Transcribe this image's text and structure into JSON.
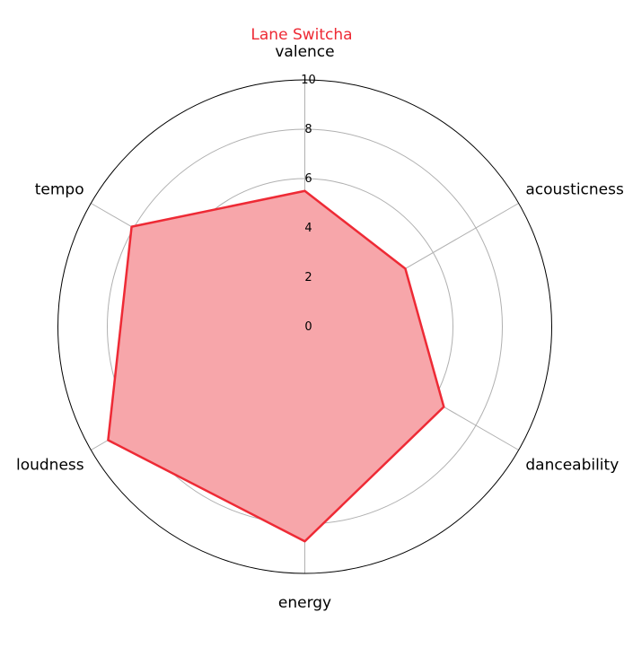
{
  "chart_data": {
    "type": "radar",
    "title": "Lane Switcha",
    "axes": [
      "valence",
      "acousticness",
      "danceability",
      "energy",
      "loudness",
      "tempo"
    ],
    "series": [
      {
        "name": "",
        "values": [
          5.5,
          4.7,
          6.5,
          8.7,
          9.2,
          8.1
        ]
      }
    ],
    "rlim": [
      0,
      10
    ],
    "rticks": [
      0,
      2,
      4,
      6,
      8,
      10
    ],
    "grid": true,
    "colors": {
      "title": "#ee2a35",
      "line": "#ee2a35",
      "fill": "#f7a6aa",
      "grid": "#b0b0b0",
      "frame": "#000000"
    }
  }
}
